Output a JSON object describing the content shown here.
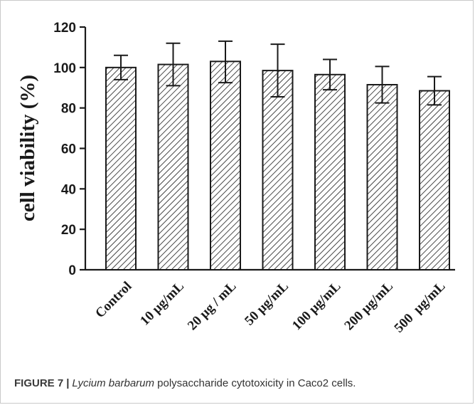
{
  "chart_data": {
    "type": "bar",
    "title": "",
    "xlabel": "",
    "ylabel": "cell viability (%)",
    "ylim": [
      0,
      120
    ],
    "yticks": [
      "0",
      "20",
      "40",
      "60",
      "80",
      "100",
      "120"
    ],
    "categories": [
      "Control",
      "10 μg/mL",
      "20 μg / mL",
      "50 μg/mL",
      "100 μg/mL",
      "200 μg/mL",
      "500  μg/mL"
    ],
    "values": [
      100,
      101.5,
      103,
      98.5,
      96.5,
      91.5,
      88.5
    ],
    "error_upper": [
      106,
      112,
      113,
      111.5,
      104,
      100.5,
      95.5
    ],
    "error_lower": [
      94,
      91,
      92.5,
      85.5,
      89,
      82.5,
      81.5
    ],
    "bar_fill": "hatched",
    "grid": false,
    "colors": {
      "bar_stroke": "#1a1a1a",
      "hatch": "#1a1a1a",
      "axis": "#1a1a1a"
    }
  },
  "caption": {
    "label": "FIGURE 7",
    "separator": "|",
    "species": "Lycium barbarum",
    "text": " polysaccharide cytotoxicity in Caco2 cells."
  }
}
